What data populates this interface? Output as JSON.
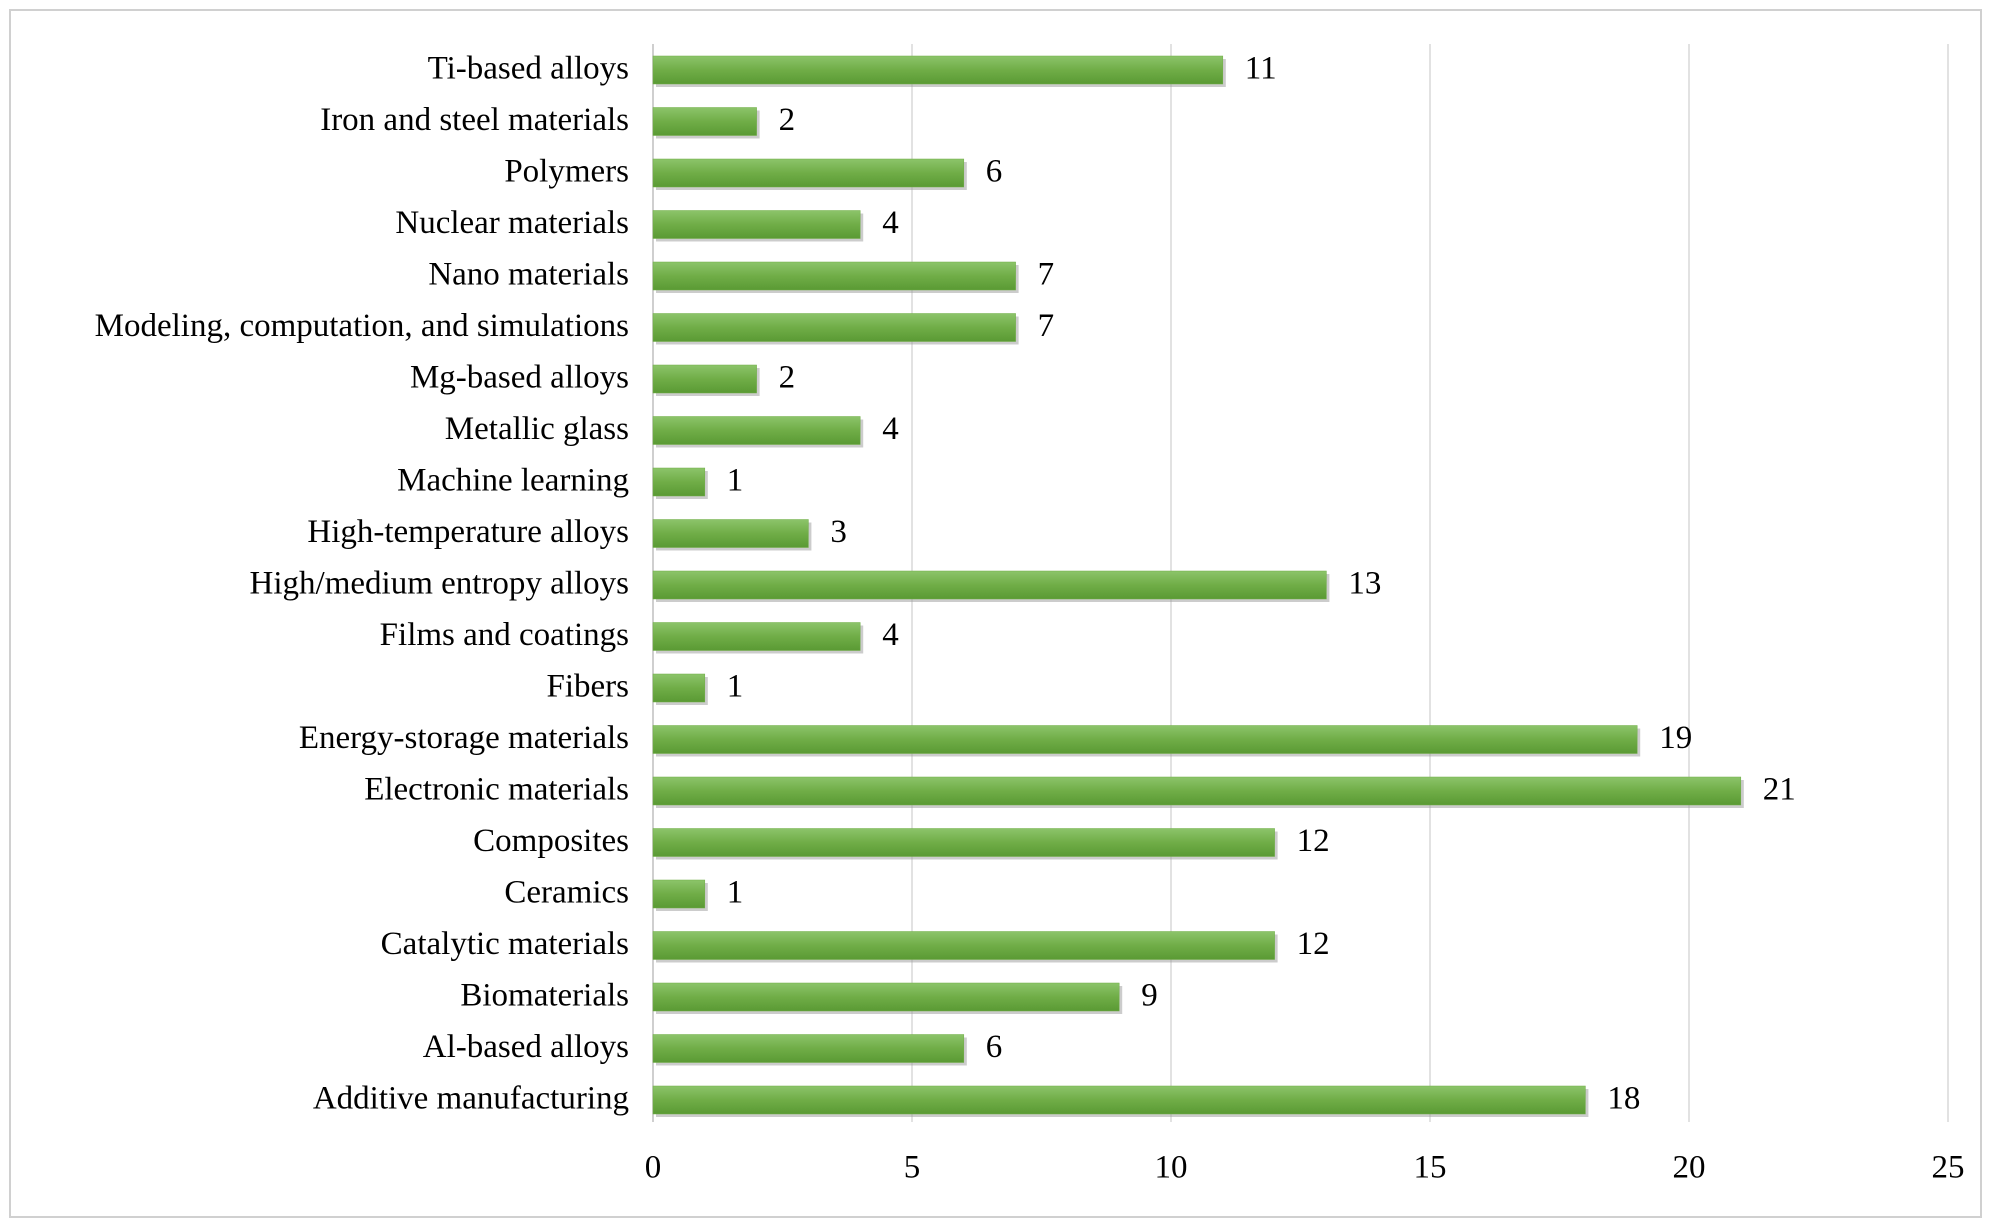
{
  "chart_data": {
    "type": "barh",
    "categories": [
      "Ti-based alloys",
      "Iron and steel materials",
      "Polymers",
      "Nuclear materials",
      "Nano materials",
      "Modeling, computation, and simulations",
      "Mg-based alloys",
      "Metallic glass",
      "Machine learning",
      "High-temperature alloys",
      "High/medium entropy alloys",
      "Films and coatings",
      "Fibers",
      "Energy-storage materials",
      "Electronic materials",
      "Composites",
      "Ceramics",
      "Catalytic materials",
      "Biomaterials",
      "Al-based alloys",
      "Additive manufacturing"
    ],
    "values": [
      11,
      2,
      6,
      4,
      7,
      7,
      2,
      4,
      1,
      3,
      13,
      4,
      1,
      19,
      21,
      12,
      1,
      12,
      9,
      6,
      18
    ],
    "color": "#70ad47",
    "xlim": [
      0,
      25
    ],
    "xticks": [
      0,
      5,
      10,
      15,
      20,
      25
    ],
    "grid": true
  }
}
